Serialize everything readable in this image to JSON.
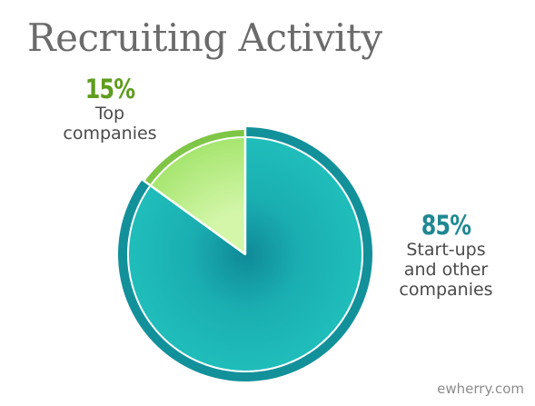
{
  "title": "Recruiting Activity",
  "chart_data": {
    "type": "pie",
    "title": "Recruiting Activity",
    "slices": [
      {
        "percent_label": "85%",
        "label_lines": [
          "Start-ups",
          "and other",
          "companies"
        ],
        "value": 85,
        "color": "#1fbcba",
        "ring_color": "#13919b"
      },
      {
        "percent_label": "15%",
        "label_lines": [
          "Top",
          "companies"
        ],
        "value": 15,
        "color": "#a8e873",
        "ring_color": "#7fc646"
      }
    ]
  },
  "watermark": "ewherry.com"
}
